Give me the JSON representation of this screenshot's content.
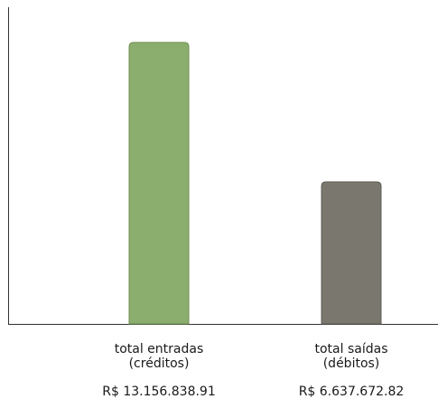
{
  "chart_data": {
    "type": "bar",
    "categories": [
      {
        "line1": "total entradas",
        "line2": "(créditos)"
      },
      {
        "line1": "total saídas",
        "line2": "(débitos)"
      }
    ],
    "values": [
      13156838.91,
      6637672.82
    ],
    "value_labels": [
      "R$ 13.156.838.91",
      "R$ 6.637.672.82"
    ],
    "colors": [
      "#8bad6e",
      "#7a776e"
    ],
    "title": "",
    "xlabel": "",
    "ylabel": "",
    "ylim": [
      0,
      14800000
    ],
    "grid": false,
    "legend": "none"
  }
}
